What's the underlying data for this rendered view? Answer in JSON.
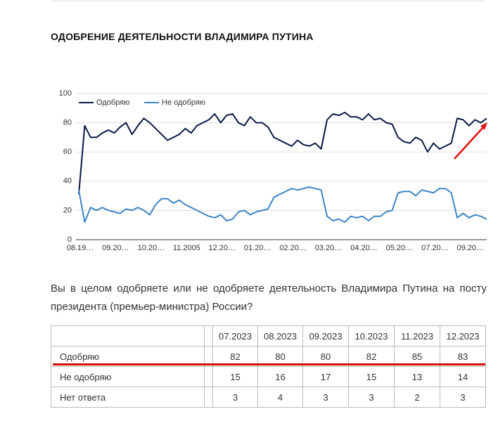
{
  "title": "ОДОБРЕНИЕ ДЕЯТЕЛЬНОСТИ ВЛАДИМИРА ПУТИНА",
  "chart_data": {
    "type": "line",
    "categories": [
      "08.19…",
      null,
      null,
      null,
      null,
      null,
      "09.20…",
      null,
      null,
      null,
      null,
      null,
      "10.20…",
      null,
      null,
      null,
      null,
      null,
      "11.2005",
      null,
      null,
      null,
      null,
      null,
      "12.20…",
      null,
      null,
      null,
      null,
      null,
      "01.20…",
      null,
      null,
      null,
      null,
      null,
      "02.20…",
      null,
      null,
      null,
      null,
      null,
      "03.20…",
      null,
      null,
      null,
      null,
      null,
      "04.20…",
      null,
      null,
      null,
      null,
      null,
      "05.20…",
      null,
      null,
      null,
      null,
      null,
      "07.20…",
      null,
      null,
      null,
      null,
      null,
      "09.20…",
      null,
      null,
      null
    ],
    "series": [
      {
        "name": "Одобряю",
        "color": "#0b1a45",
        "values": [
          31,
          78,
          70,
          70,
          73,
          75,
          73,
          77,
          80,
          72,
          78,
          83,
          80,
          76,
          72,
          68,
          70,
          72,
          76,
          73,
          78,
          80,
          82,
          86,
          80,
          85,
          86,
          80,
          78,
          84,
          80,
          80,
          77,
          70,
          68,
          66,
          64,
          68,
          65,
          64,
          66,
          62,
          82,
          86,
          85,
          87,
          84,
          84,
          82,
          86,
          82,
          83,
          80,
          79,
          70,
          67,
          66,
          70,
          68,
          60,
          66,
          62,
          64,
          66,
          83,
          82,
          78,
          82,
          80,
          83
        ]
      },
      {
        "name": "Не одобряю",
        "color": "#3d85c6",
        "values": [
          34,
          12,
          22,
          20,
          22,
          20,
          19,
          18,
          21,
          20,
          22,
          20,
          17,
          24,
          28,
          28,
          25,
          27,
          24,
          22,
          20,
          18,
          16,
          15,
          17,
          13,
          14,
          19,
          20,
          17,
          19,
          20,
          21,
          29,
          31,
          33,
          35,
          34,
          35,
          36,
          35,
          34,
          16,
          13,
          14,
          12,
          16,
          15,
          16,
          13,
          16,
          16,
          19,
          20,
          32,
          33,
          33,
          30,
          34,
          33,
          32,
          35,
          35,
          32,
          15,
          18,
          15,
          17,
          16,
          14
        ]
      }
    ],
    "ylim": [
      0,
      100
    ],
    "yticks": [
      0,
      20,
      40,
      60,
      80,
      100
    ],
    "grid": true,
    "legend": "top-left"
  },
  "question": "Вы в целом одобряете или не одобряете деятельность Владимира Путина на посту президента (премьер-министра) России?",
  "table": {
    "columns": [
      "07.2023",
      "08.2023",
      "09.2023",
      "10.2023",
      "11.2023",
      "12.2023"
    ],
    "rows": [
      {
        "label": "Одобряю",
        "values": [
          82,
          80,
          80,
          82,
          85,
          83
        ]
      },
      {
        "label": "Не одобряю",
        "values": [
          15,
          16,
          17,
          15,
          13,
          14
        ]
      },
      {
        "label": "Нет ответа",
        "values": [
          3,
          4,
          3,
          3,
          2,
          3
        ]
      }
    ]
  }
}
